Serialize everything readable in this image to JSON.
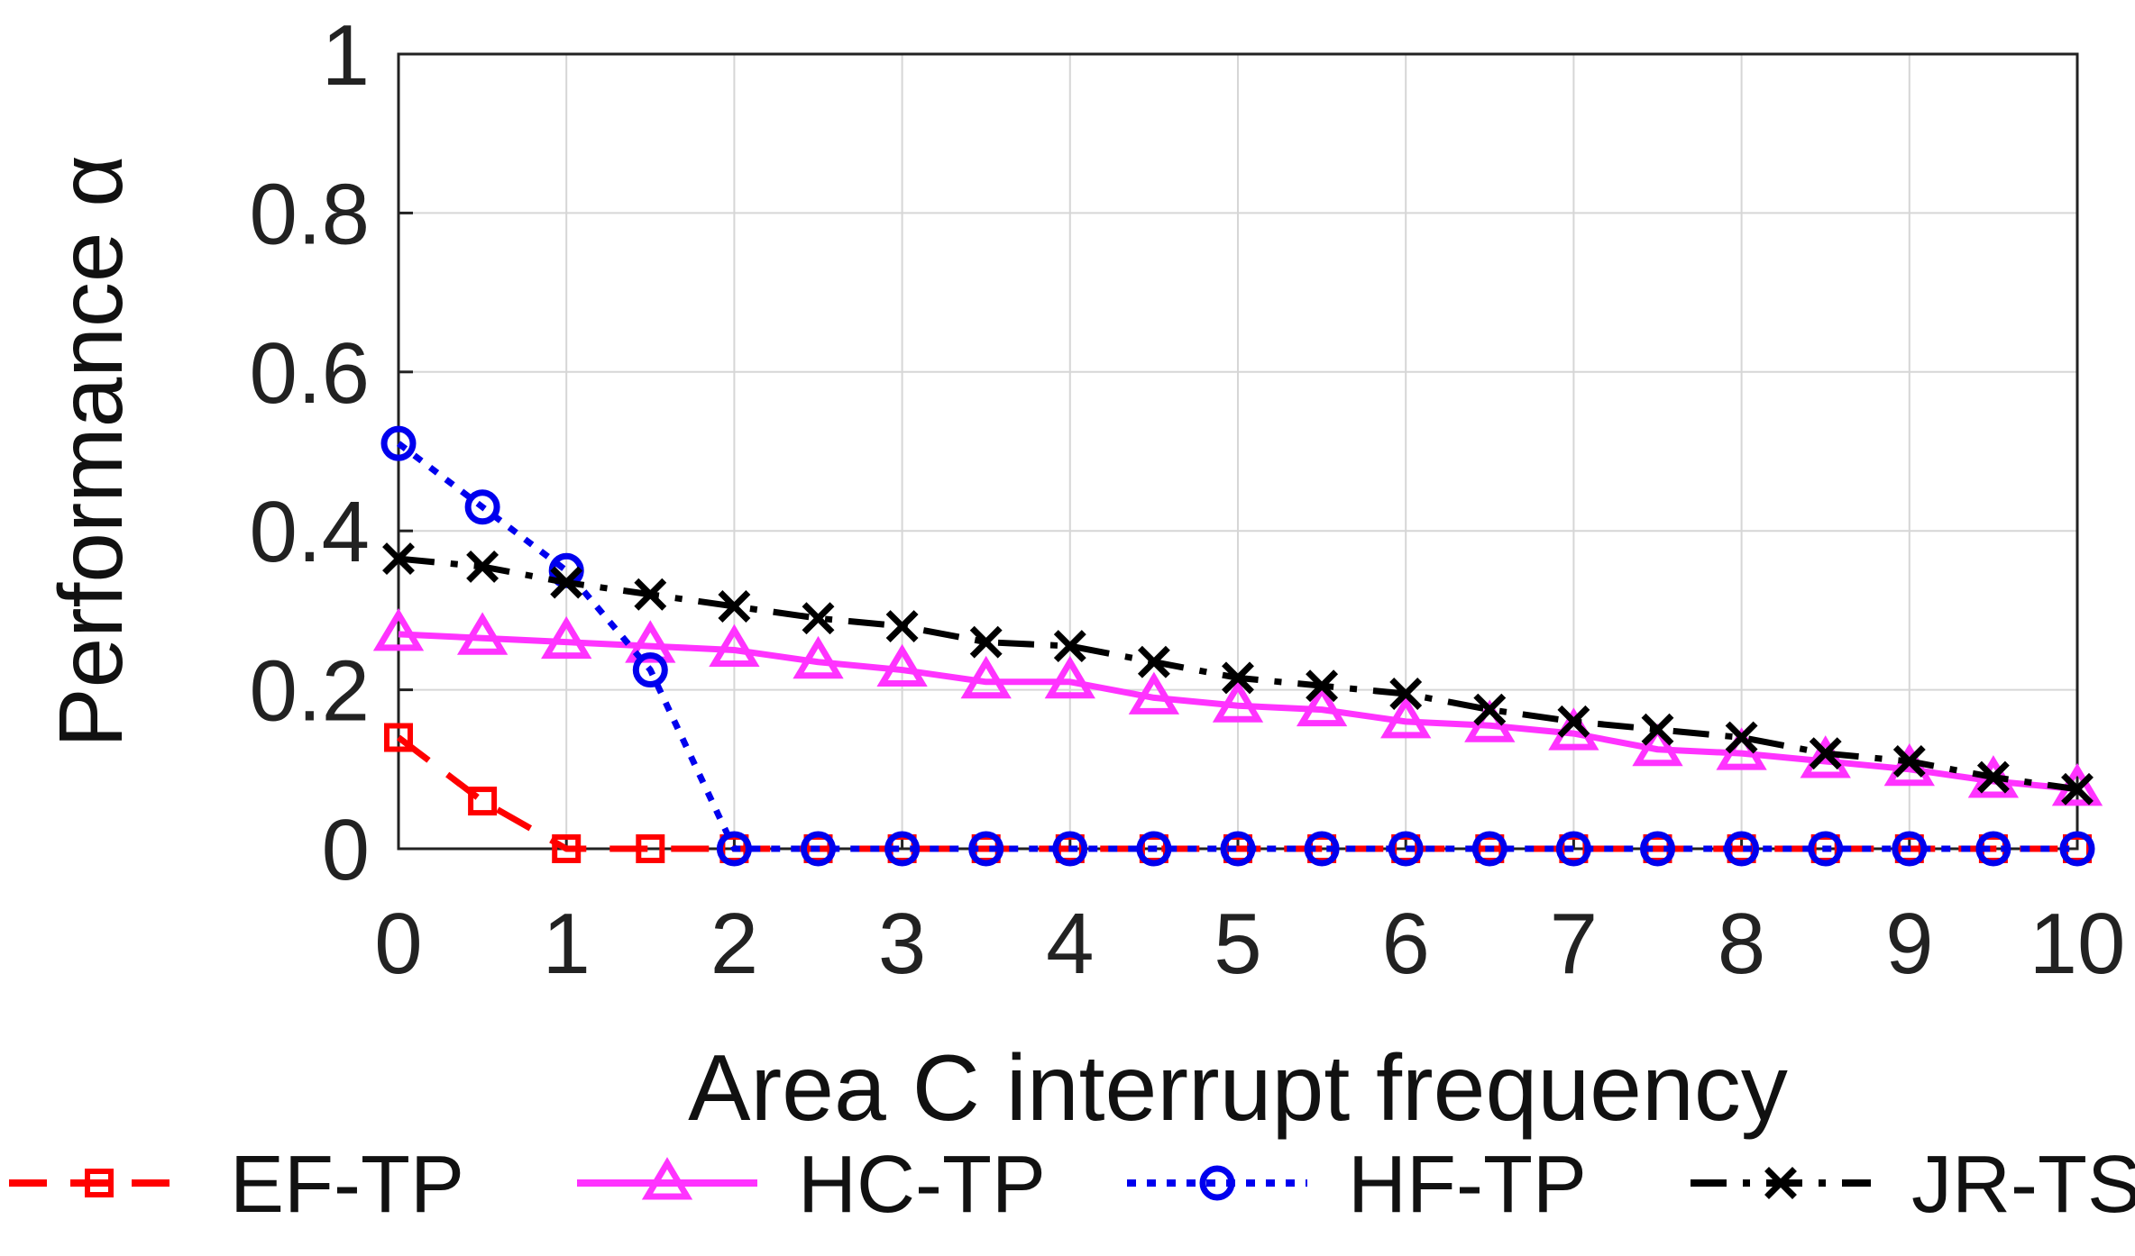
{
  "chart_data": {
    "type": "line",
    "title": "",
    "xlabel": "Area C interrupt frequency",
    "ylabel": "Performance  α",
    "xlim": [
      0,
      10
    ],
    "ylim": [
      0,
      1
    ],
    "xticks": [
      "0",
      "1",
      "2",
      "3",
      "4",
      "5",
      "6",
      "7",
      "8",
      "9",
      "10"
    ],
    "yticks": [
      "0",
      "0.2",
      "0.4",
      "0.6",
      "0.8",
      "1"
    ],
    "grid": true,
    "legend_position": "bottom",
    "x": [
      0,
      0.5,
      1,
      1.5,
      2,
      2.5,
      3,
      3.5,
      4,
      4.5,
      5,
      5.5,
      6,
      6.5,
      7,
      7.5,
      8,
      8.5,
      9,
      9.5,
      10
    ],
    "series": [
      {
        "name": "EF-TP",
        "color": "#ff0000",
        "marker": "square",
        "line_style": "dashed",
        "values": [
          0.14,
          0.06,
          0,
          0,
          0,
          0,
          0,
          0,
          0,
          0,
          0,
          0,
          0,
          0,
          0,
          0,
          0,
          0,
          0,
          0,
          0
        ]
      },
      {
        "name": "HC-TP",
        "color": "#ff33ff",
        "marker": "triangle",
        "line_style": "solid",
        "values": [
          0.27,
          0.265,
          0.26,
          0.255,
          0.25,
          0.235,
          0.225,
          0.21,
          0.21,
          0.19,
          0.18,
          0.175,
          0.16,
          0.155,
          0.145,
          0.125,
          0.12,
          0.11,
          0.1,
          0.085,
          0.075
        ]
      },
      {
        "name": "HF-TP",
        "color": "#0000ee",
        "marker": "circle",
        "line_style": "dotted",
        "values": [
          0.51,
          0.43,
          0.35,
          0.225,
          0,
          0,
          0,
          0,
          0,
          0,
          0,
          0,
          0,
          0,
          0,
          0,
          0,
          0,
          0,
          0,
          0
        ]
      },
      {
        "name": "JR-TS",
        "color": "#000000",
        "marker": "x",
        "line_style": "dashdot",
        "values": [
          0.365,
          0.355,
          0.335,
          0.32,
          0.305,
          0.29,
          0.28,
          0.26,
          0.255,
          0.235,
          0.215,
          0.205,
          0.195,
          0.175,
          0.16,
          0.15,
          0.14,
          0.12,
          0.11,
          0.09,
          0.075
        ]
      }
    ]
  }
}
